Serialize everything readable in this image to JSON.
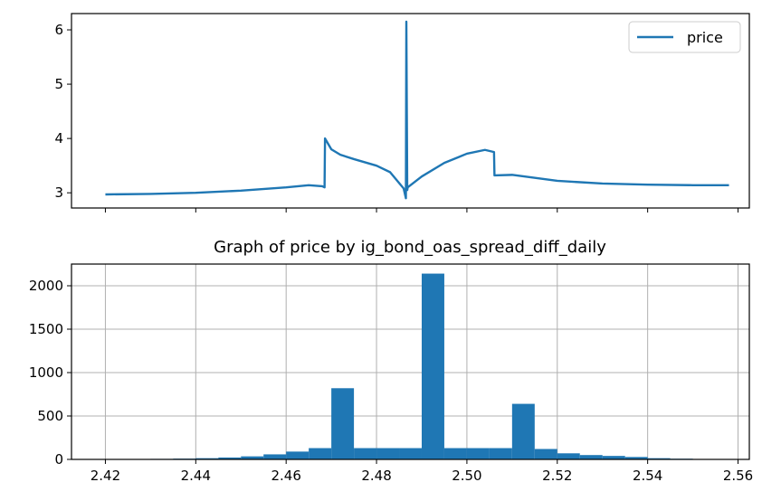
{
  "chart_data": [
    {
      "type": "line",
      "title": "",
      "legend": {
        "entries": [
          "price"
        ],
        "placement": "top-right"
      },
      "ylim": [
        2.72,
        6.3
      ],
      "yticks": [
        3,
        4,
        5,
        6
      ],
      "grid": false,
      "x": [
        2.42,
        2.43,
        2.44,
        2.45,
        2.46,
        2.465,
        2.468,
        2.4685,
        2.4686,
        2.47,
        2.472,
        2.475,
        2.48,
        2.483,
        2.486,
        2.4865,
        2.4866,
        2.4868,
        2.4869,
        2.49,
        2.495,
        2.5,
        2.504,
        2.506,
        2.5061,
        2.51,
        2.52,
        2.53,
        2.54,
        2.55,
        2.558
      ],
      "series": [
        {
          "name": "price",
          "color": "#1f77b4",
          "values": [
            2.97,
            2.98,
            3.0,
            3.04,
            3.1,
            3.14,
            3.12,
            3.1,
            4.0,
            3.8,
            3.7,
            3.62,
            3.5,
            3.38,
            3.08,
            2.9,
            6.15,
            3.05,
            3.1,
            3.3,
            3.55,
            3.72,
            3.79,
            3.75,
            3.32,
            3.33,
            3.22,
            3.17,
            3.15,
            3.14,
            3.14
          ]
        }
      ]
    },
    {
      "type": "bar",
      "title": "Graph of price by ig_bond_oas_spread_diff_daily",
      "xlim": [
        2.4125,
        2.5625
      ],
      "ylim": [
        0,
        2250
      ],
      "xticks": [
        "2.42",
        "2.44",
        "2.46",
        "2.48",
        "2.50",
        "2.52",
        "2.54",
        "2.56"
      ],
      "yticks": [
        "0",
        "500",
        "1000",
        "1500",
        "2000"
      ],
      "grid": true,
      "color": "#1f77b4",
      "bin_width": 0.005,
      "bins": [
        2.42,
        2.425,
        2.43,
        2.435,
        2.44,
        2.445,
        2.45,
        2.455,
        2.46,
        2.465,
        2.47,
        2.475,
        2.48,
        2.485,
        2.49,
        2.495,
        2.5,
        2.505,
        2.51,
        2.515,
        2.52,
        2.525,
        2.53,
        2.535,
        2.54,
        2.545,
        2.55,
        2.555
      ],
      "values": [
        3,
        4,
        6,
        9,
        14,
        22,
        35,
        58,
        90,
        130,
        820,
        130,
        130,
        130,
        2140,
        130,
        130,
        130,
        640,
        120,
        70,
        50,
        40,
        28,
        14,
        8,
        5,
        3
      ]
    }
  ]
}
